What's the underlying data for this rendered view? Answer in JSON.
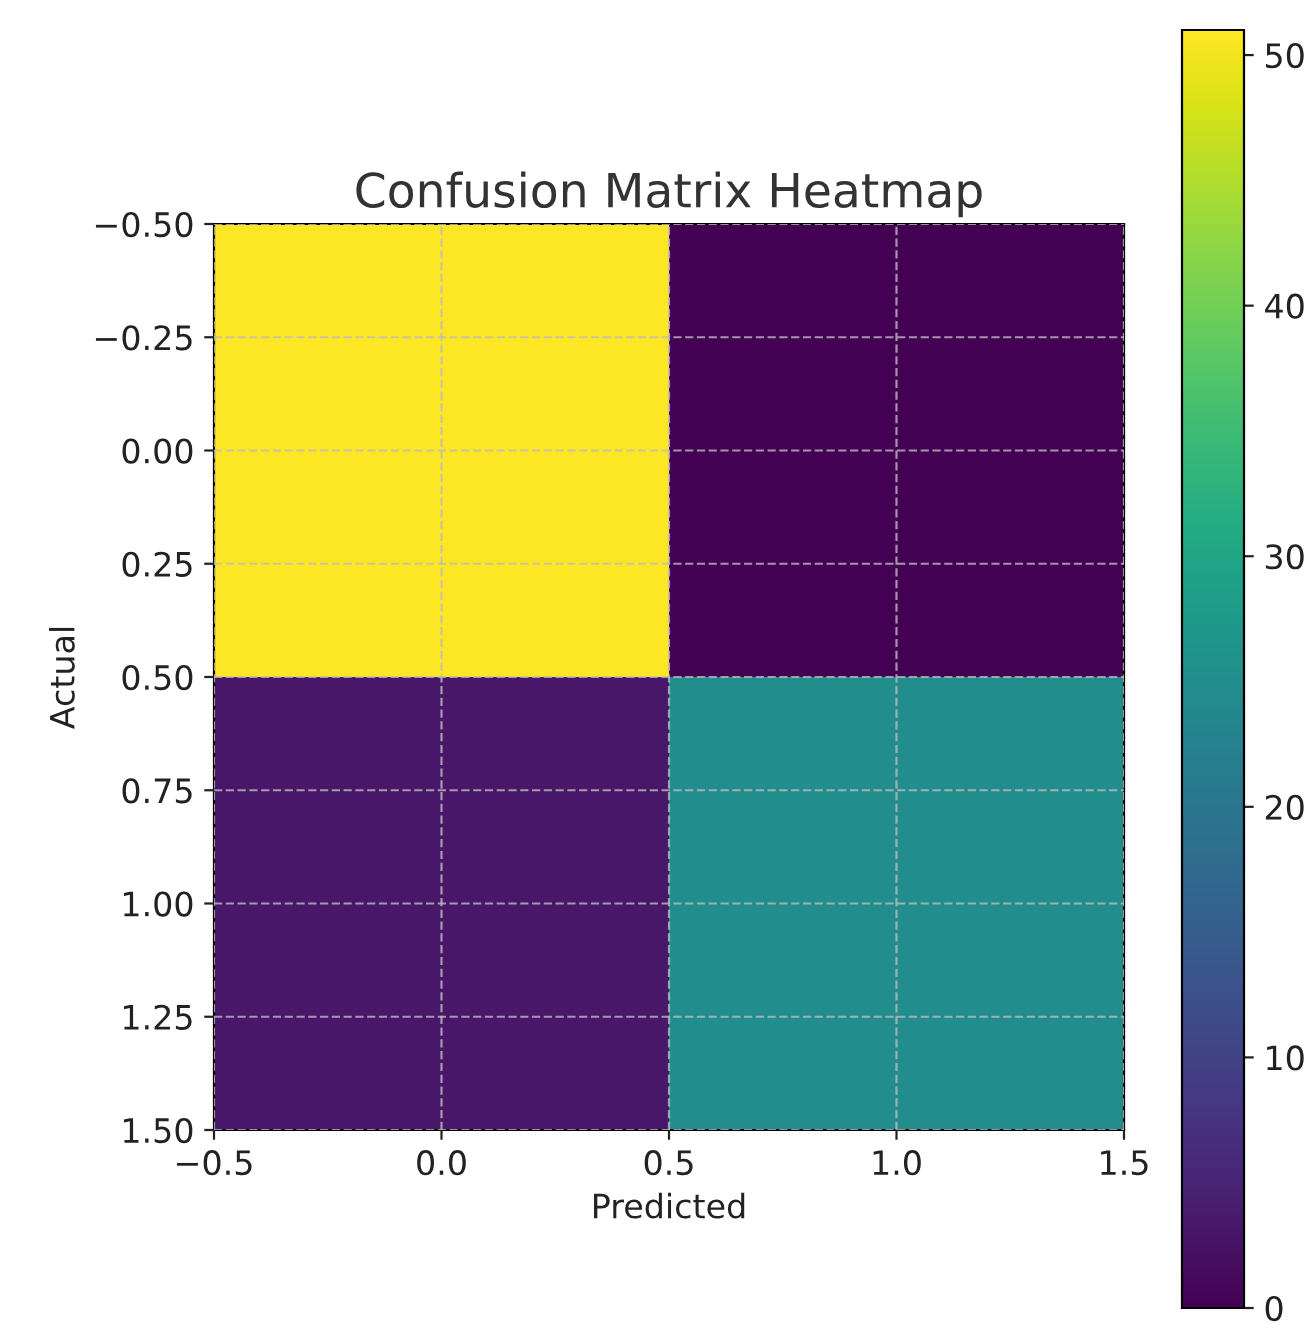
{
  "chart_data": {
    "type": "heatmap",
    "title": "Confusion Matrix Heatmap",
    "xlabel": "Predicted",
    "ylabel": "Actual",
    "cells": [
      [
        51,
        0
      ],
      [
        3,
        25
      ]
    ],
    "xlim": [
      -0.5,
      1.5
    ],
    "ylim": [
      1.5,
      -0.5
    ],
    "xticks": [
      -0.5,
      {
        "value": 0,
        "label": "0.0"
      },
      0.5,
      {
        "value": 1,
        "label": "1.0"
      },
      1.5
    ],
    "yticks": [
      {
        "value": -0.5,
        "label": "−0.50"
      },
      {
        "value": -0.25,
        "label": "−0.25"
      },
      {
        "value": 0,
        "label": "0.00"
      },
      {
        "value": 0.25,
        "label": "0.25"
      },
      {
        "value": 0.5,
        "label": "0.50"
      },
      {
        "value": 0.75,
        "label": "0.75"
      },
      {
        "value": 1.0,
        "label": "1.00"
      },
      {
        "value": 1.25,
        "label": "1.25"
      },
      {
        "value": 1.5,
        "label": "1.50"
      }
    ],
    "clim": [
      0,
      51
    ],
    "cticks": [
      0,
      10,
      20,
      30,
      40,
      50
    ],
    "grid": true
  }
}
